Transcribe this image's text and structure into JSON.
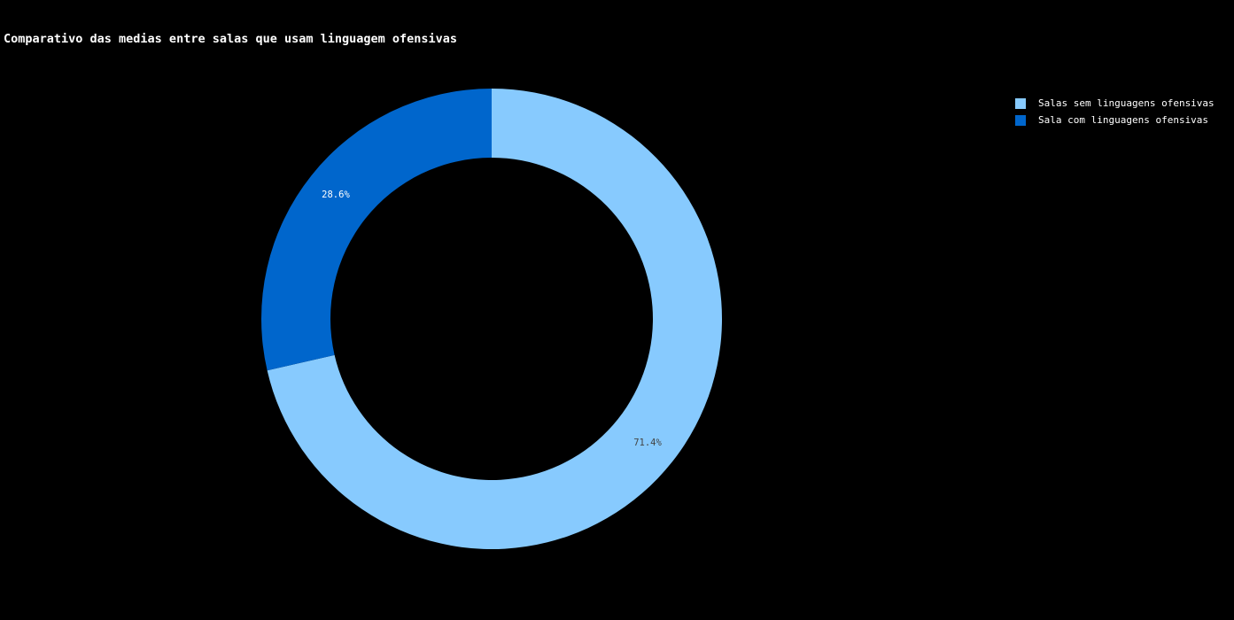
{
  "chart_data": {
    "type": "pie",
    "title": "Comparativo das medias entre salas que usam linguagem ofensivas",
    "hole": true,
    "legend_position": "top-right",
    "slices": [
      {
        "name": "Salas sem linguagens ofensivas",
        "value": 71.4,
        "label": "71.4%",
        "color": "#87cafe",
        "label_color": "#444444"
      },
      {
        "name": "Sala com linguagens ofensivas",
        "value": 28.6,
        "label": "28.6%",
        "color": "#0066cc",
        "label_color": "#ffffff"
      }
    ]
  }
}
